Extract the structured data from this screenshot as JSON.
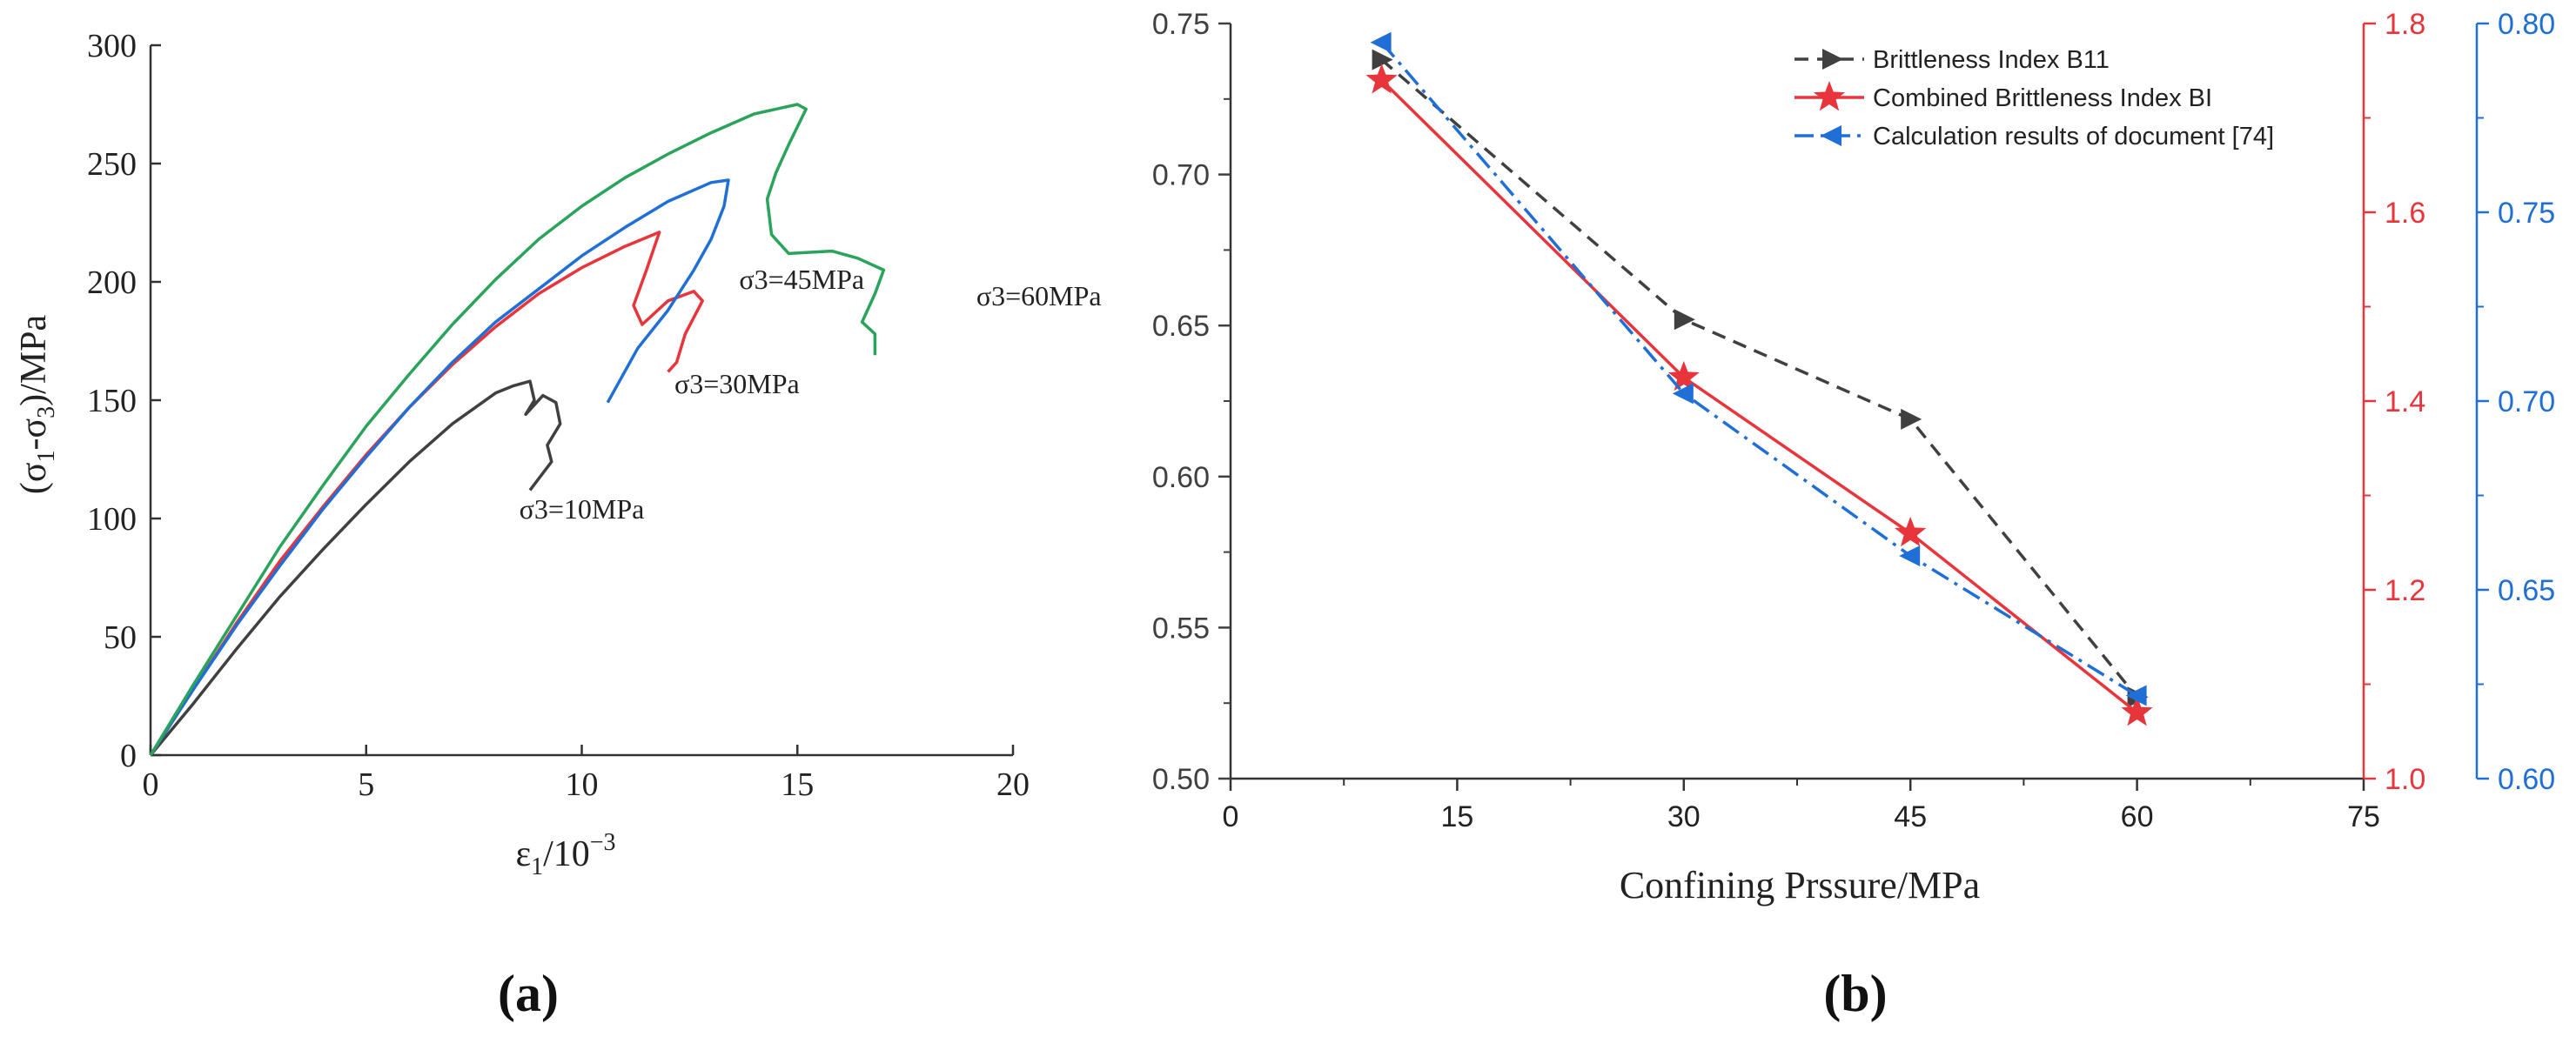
{
  "panels": {
    "a_label": "(a)",
    "b_label": "(b)"
  },
  "chart_data": [
    {
      "type": "line",
      "panel": "a",
      "title": "",
      "xlabel_main": "ε",
      "xlabel_sub": "1",
      "xlabel_rest": "/10",
      "xlabel_sup": "−3",
      "ylabel_parts": [
        "(σ",
        "1",
        "-σ",
        "3",
        ")/MPa"
      ],
      "xlim": [
        0,
        20
      ],
      "ylim": [
        0,
        300
      ],
      "xticks": [
        "0",
        "5",
        "10",
        "15",
        "20"
      ],
      "yticks": [
        "0",
        "50",
        "100",
        "150",
        "200",
        "250",
        "300"
      ],
      "series": [
        {
          "name": "σ3=10MPa",
          "color": "#404040",
          "points": [
            [
              0,
              0
            ],
            [
              1,
              22
            ],
            [
              2,
              45
            ],
            [
              3,
              67
            ],
            [
              4,
              87
            ],
            [
              5,
              106
            ],
            [
              6,
              124
            ],
            [
              7,
              140
            ],
            [
              8,
              153
            ],
            [
              8.4,
              156
            ],
            [
              8.8,
              158
            ],
            [
              8.9,
              150
            ],
            [
              8.7,
              144
            ],
            [
              9.1,
              152
            ],
            [
              9.4,
              149
            ],
            [
              9.5,
              140
            ],
            [
              9.2,
              131
            ],
            [
              9.3,
              124
            ],
            [
              8.8,
              112
            ]
          ]
        },
        {
          "name": "σ3=30MPa",
          "color": "#e8353b",
          "points": [
            [
              0,
              0
            ],
            [
              1,
              28
            ],
            [
              2,
              56
            ],
            [
              3,
              82
            ],
            [
              4,
              105
            ],
            [
              5,
              127
            ],
            [
              6,
              147
            ],
            [
              7,
              165
            ],
            [
              8,
              181
            ],
            [
              9,
              195
            ],
            [
              10,
              206
            ],
            [
              11,
              215
            ],
            [
              11.8,
              221
            ],
            [
              11.5,
              205
            ],
            [
              11.2,
              190
            ],
            [
              11.4,
              182
            ],
            [
              12,
              192
            ],
            [
              12.6,
              196
            ],
            [
              12.8,
              192
            ],
            [
              12.4,
              178
            ],
            [
              12.2,
              166
            ],
            [
              12,
              162
            ]
          ]
        },
        {
          "name": "σ3=45MPa",
          "color": "#1f6fd6",
          "points": [
            [
              0,
              0
            ],
            [
              1,
              28
            ],
            [
              2,
              55
            ],
            [
              3,
              80
            ],
            [
              4,
              104
            ],
            [
              5,
              126
            ],
            [
              6,
              147
            ],
            [
              7,
              166
            ],
            [
              8,
              183
            ],
            [
              9,
              197
            ],
            [
              10,
              211
            ],
            [
              11,
              223
            ],
            [
              12,
              234
            ],
            [
              13,
              242
            ],
            [
              13.4,
              243
            ],
            [
              13.3,
              232
            ],
            [
              13,
              218
            ],
            [
              12.6,
              205
            ],
            [
              12,
              188
            ],
            [
              11.3,
              172
            ],
            [
              10.6,
              149
            ]
          ]
        },
        {
          "name": "σ3=60MPa",
          "color": "#2aa45a",
          "points": [
            [
              0,
              0
            ],
            [
              1,
              30
            ],
            [
              2,
              59
            ],
            [
              3,
              88
            ],
            [
              4,
              114
            ],
            [
              5,
              139
            ],
            [
              6,
              161
            ],
            [
              7,
              182
            ],
            [
              8,
              201
            ],
            [
              9,
              218
            ],
            [
              10,
              232
            ],
            [
              11,
              244
            ],
            [
              12,
              254
            ],
            [
              13,
              263
            ],
            [
              14,
              271
            ],
            [
              15,
              275
            ],
            [
              15.2,
              273
            ],
            [
              14.8,
              258
            ],
            [
              14.5,
              246
            ],
            [
              14.3,
              235
            ],
            [
              14.4,
              220
            ],
            [
              14.8,
              212
            ],
            [
              15.8,
              213
            ],
            [
              16.4,
              210
            ],
            [
              17,
              205
            ],
            [
              16.8,
              195
            ],
            [
              16.5,
              183
            ],
            [
              16.8,
              178
            ],
            [
              16.8,
              169
            ]
          ]
        }
      ],
      "annotations": [
        {
          "text": "σ3=10MPa",
          "x": 10,
          "y": 100
        },
        {
          "text": "σ3=30MPa",
          "x": 13.6,
          "y": 153
        },
        {
          "text": "σ3=45MPa",
          "x": 15.1,
          "y": 197
        },
        {
          "text": "σ3=60MPa",
          "x": 20.6,
          "y": 190
        }
      ]
    },
    {
      "type": "line",
      "panel": "b",
      "title": "",
      "xlabel": "Confining Prssure/MPa",
      "xlim": [
        0,
        75
      ],
      "xticks": [
        "0",
        "15",
        "30",
        "45",
        "60",
        "75"
      ],
      "left_axis": {
        "ylim": [
          0.5,
          0.75
        ],
        "ticks": [
          "0.50",
          "0.55",
          "0.60",
          "0.65",
          "0.70",
          "0.75"
        ],
        "color": "#404040"
      },
      "right_axis_1": {
        "ylim": [
          1.0,
          1.8
        ],
        "ticks": [
          "1.0",
          "1.2",
          "1.4",
          "1.6",
          "1.8"
        ],
        "color": "#e8353b"
      },
      "right_axis_2": {
        "ylim": [
          0.6,
          0.8
        ],
        "ticks": [
          "0.60",
          "0.65",
          "0.70",
          "0.75",
          "0.80"
        ],
        "color": "#1f6fd6"
      },
      "legend_position": "top-right",
      "series": [
        {
          "name": "Brittleness Index B11",
          "color": "#404040",
          "axis": "left",
          "marker": "triangle-right",
          "dash": "dashed",
          "x": [
            10,
            30,
            45,
            60
          ],
          "values": [
            0.738,
            0.652,
            0.619,
            0.527
          ]
        },
        {
          "name": "Combined Brittleness Index BI",
          "color": "#e8353b",
          "axis": "right_1",
          "marker": "star",
          "dash": "solid",
          "x": [
            10,
            30,
            45,
            60
          ],
          "values": [
            1.74,
            1.425,
            1.26,
            1.07
          ]
        },
        {
          "name": "Calculation results of document [74]",
          "color": "#1f6fd6",
          "axis": "right_2",
          "marker": "triangle-left",
          "dash": "dashdot",
          "x": [
            10,
            30,
            45,
            60
          ],
          "values": [
            0.795,
            0.702,
            0.659,
            0.622
          ]
        }
      ]
    }
  ]
}
